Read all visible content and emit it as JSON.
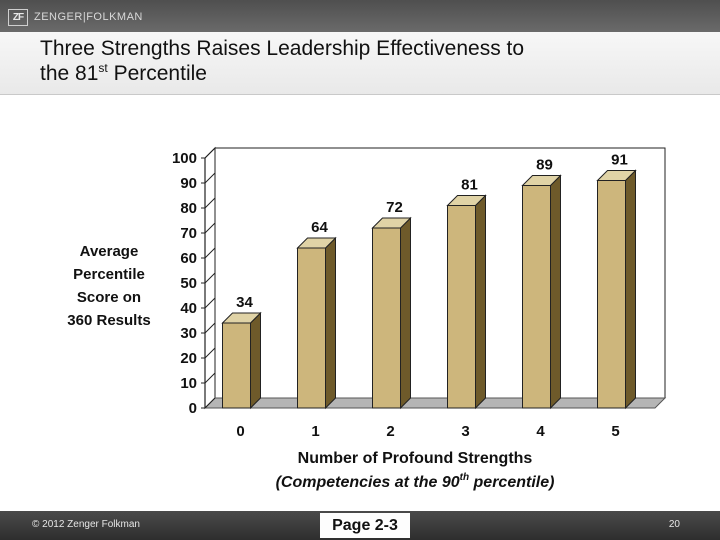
{
  "brand": {
    "logo_mark": "ZF",
    "logo_text": "ZENGER|FOLKMAN"
  },
  "slide": {
    "title_line1": "Three Strengths Raises Leadership Effectiveness to",
    "title_prefix": "the 81",
    "title_sup": "st",
    "title_suffix": " Percentile"
  },
  "y_axis_title": [
    "Average",
    "Percentile",
    "Score on",
    "360 Results"
  ],
  "x_axis_title": "Number of Profound Strengths",
  "x_axis_subtitle_prefix": "(Competencies at the 90",
  "x_axis_subtitle_sup": "th",
  "x_axis_subtitle_suffix": " percentile)",
  "footer": {
    "copyright": "© 2012 Zenger Folkman",
    "page_label": "Page 2-3",
    "page_number": "20"
  },
  "colors": {
    "bar_front": "#cdb67c",
    "bar_side": "#6e5a2a",
    "bar_top": "#e0d3a6",
    "floor": "#b5b5b5"
  },
  "chart_data": {
    "type": "bar",
    "categories": [
      "0",
      "1",
      "2",
      "3",
      "4",
      "5"
    ],
    "values": [
      34,
      64,
      72,
      81,
      89,
      91
    ],
    "data_labels": [
      "34",
      "64",
      "72",
      "81",
      "89",
      "91"
    ],
    "ylim": [
      0,
      100
    ],
    "yticks": [
      0,
      10,
      20,
      30,
      40,
      50,
      60,
      70,
      80,
      90,
      100
    ],
    "grid": false,
    "three_d": true
  }
}
